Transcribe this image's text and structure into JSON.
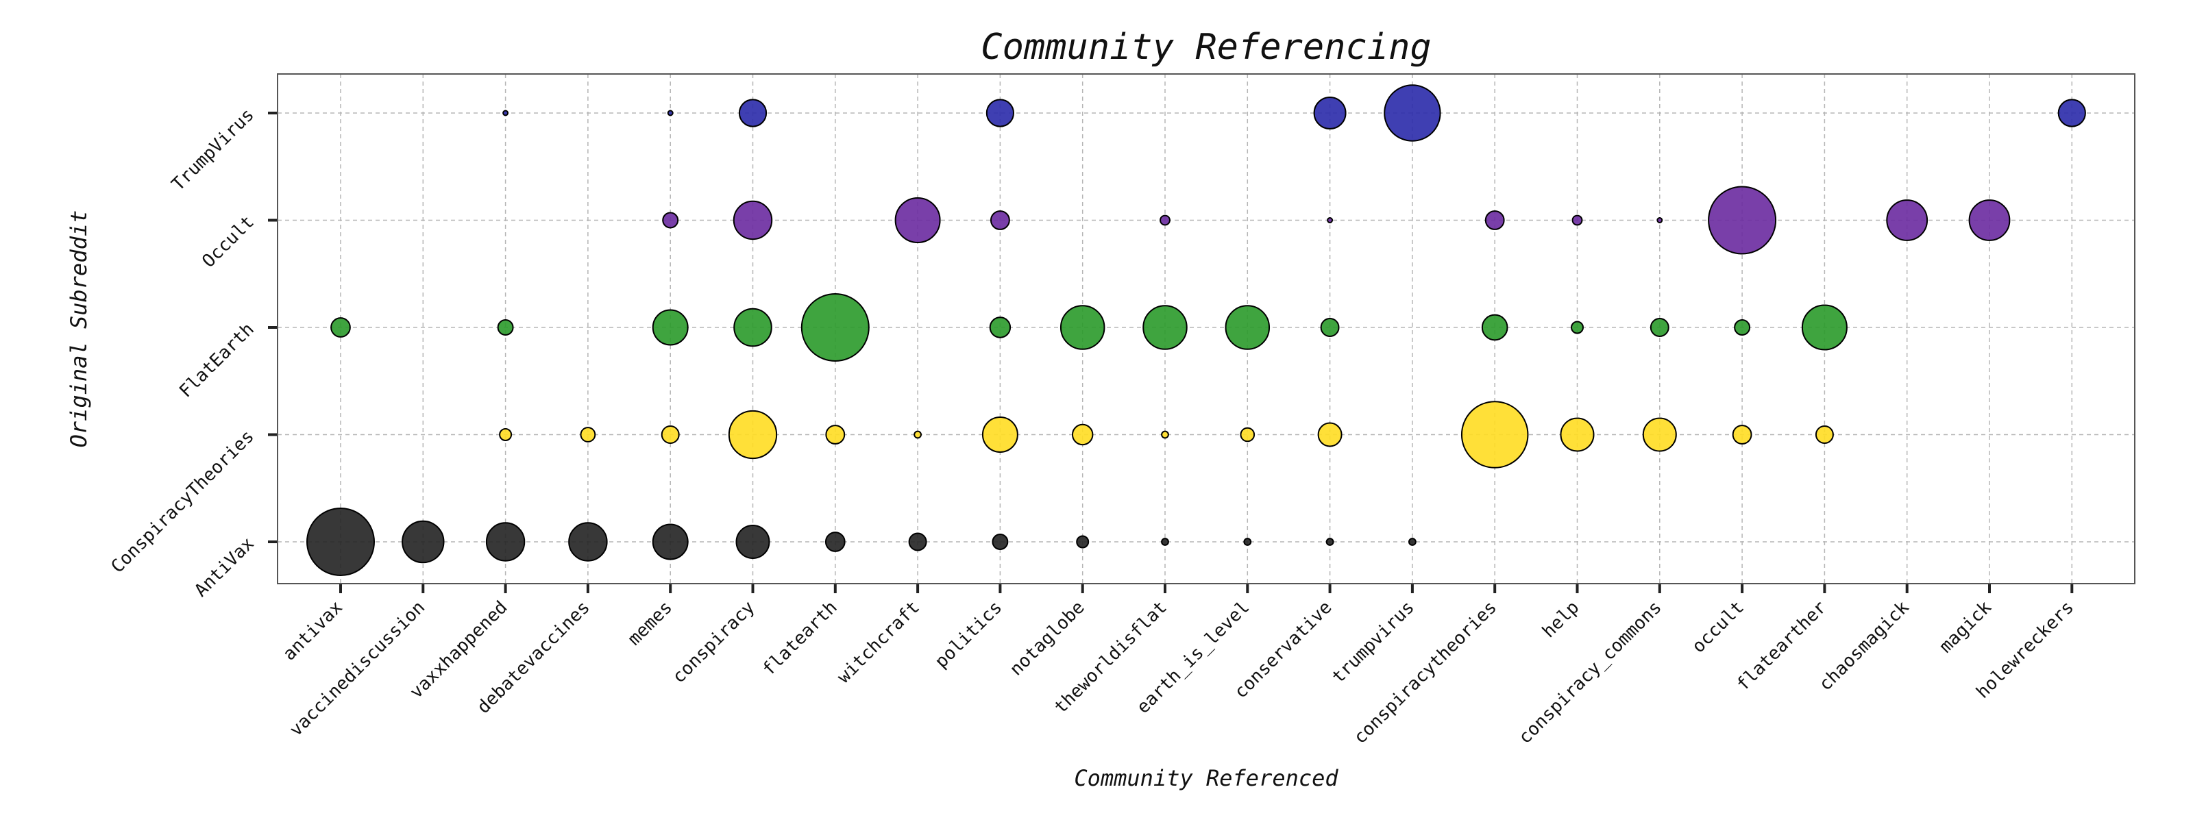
{
  "chart_data": {
    "type": "scatter",
    "title": "Community Referencing",
    "xlabel": "Community Referenced",
    "ylabel": "Original Subreddit",
    "grid": true,
    "categories_x": [
      "antivax",
      "vaccinediscussion",
      "vaxxhappened",
      "debatevaccines",
      "memes",
      "conspiracy",
      "flatearth",
      "witchcraft",
      "politics",
      "notaglobe",
      "theworldisflat",
      "earth_is_level",
      "conservative",
      "trumpvirus",
      "conspiracytheories",
      "help",
      "conspiracy_commons",
      "occult",
      "flatearther",
      "chaosmagick",
      "magick",
      "holewreckers"
    ],
    "categories_y": [
      "AntiVax",
      "ConspiracyTheories",
      "FlatEarth",
      "Occult",
      "TrumpVirus"
    ],
    "series": [
      {
        "name": "AntiVax",
        "color": "#222222",
        "points": [
          {
            "x": "antivax",
            "size": 100
          },
          {
            "x": "vaccinediscussion",
            "size": 38
          },
          {
            "x": "vaxxhappened",
            "size": 32
          },
          {
            "x": "debatevaccines",
            "size": 32
          },
          {
            "x": "memes",
            "size": 27
          },
          {
            "x": "conspiracy",
            "size": 24
          },
          {
            "x": "flatearth",
            "size": 8
          },
          {
            "x": "witchcraft",
            "size": 6.5
          },
          {
            "x": "politics",
            "size": 5
          },
          {
            "x": "notaglobe",
            "size": 3
          },
          {
            "x": "theworldisflat",
            "size": 1
          },
          {
            "x": "earth_is_level",
            "size": 1
          },
          {
            "x": "conservative",
            "size": 1
          },
          {
            "x": "trumpvirus",
            "size": 1
          }
        ]
      },
      {
        "name": "ConspiracyTheories",
        "color": "#ffdd22",
        "points": [
          {
            "x": "vaxxhappened",
            "size": 3
          },
          {
            "x": "debatevaccines",
            "size": 4.5
          },
          {
            "x": "memes",
            "size": 6.5
          },
          {
            "x": "conspiracy",
            "size": 50
          },
          {
            "x": "flatearth",
            "size": 7.5
          },
          {
            "x": "witchcraft",
            "size": 1
          },
          {
            "x": "politics",
            "size": 27
          },
          {
            "x": "notaglobe",
            "size": 9
          },
          {
            "x": "theworldisflat",
            "size": 1
          },
          {
            "x": "earth_is_level",
            "size": 4
          },
          {
            "x": "conservative",
            "size": 12
          },
          {
            "x": "conspiracytheories",
            "size": 97
          },
          {
            "x": "help",
            "size": 24
          },
          {
            "x": "conspiracy_commons",
            "size": 24
          },
          {
            "x": "occult",
            "size": 7.5
          },
          {
            "x": "flatearther",
            "size": 6.5
          }
        ]
      },
      {
        "name": "FlatEarth",
        "color": "#2a9a2a",
        "points": [
          {
            "x": "antivax",
            "size": 8
          },
          {
            "x": "vaxxhappened",
            "size": 5
          },
          {
            "x": "memes",
            "size": 27
          },
          {
            "x": "conspiracy",
            "size": 31
          },
          {
            "x": "flatearth",
            "size": 100
          },
          {
            "x": "politics",
            "size": 9
          },
          {
            "x": "notaglobe",
            "size": 42
          },
          {
            "x": "theworldisflat",
            "size": 42
          },
          {
            "x": "earth_is_level",
            "size": 42
          },
          {
            "x": "conservative",
            "size": 7
          },
          {
            "x": "conspiracytheories",
            "size": 14
          },
          {
            "x": "help",
            "size": 3
          },
          {
            "x": "conspiracy_commons",
            "size": 7
          },
          {
            "x": "occult",
            "size": 5
          },
          {
            "x": "flatearther",
            "size": 44
          }
        ]
      },
      {
        "name": "Occult",
        "color": "#6a2aa0",
        "points": [
          {
            "x": "memes",
            "size": 5
          },
          {
            "x": "conspiracy",
            "size": 32
          },
          {
            "x": "witchcraft",
            "size": 44
          },
          {
            "x": "politics",
            "size": 7.5
          },
          {
            "x": "theworldisflat",
            "size": 2
          },
          {
            "x": "conservative",
            "size": 0.5
          },
          {
            "x": "conspiracytheories",
            "size": 7.5
          },
          {
            "x": "help",
            "size": 2
          },
          {
            "x": "conspiracy_commons",
            "size": 0.5
          },
          {
            "x": "occult",
            "size": 100
          },
          {
            "x": "chaosmagick",
            "size": 36
          },
          {
            "x": "magick",
            "size": 36
          }
        ]
      },
      {
        "name": "TrumpVirus",
        "color": "#2a2aaa",
        "points": [
          {
            "x": "vaxxhappened",
            "size": 0.5
          },
          {
            "x": "memes",
            "size": 0.5
          },
          {
            "x": "conspiracy",
            "size": 16
          },
          {
            "x": "politics",
            "size": 16
          },
          {
            "x": "conservative",
            "size": 22
          },
          {
            "x": "trumpvirus",
            "size": 69
          },
          {
            "x": "holewreckers",
            "size": 16
          }
        ]
      }
    ]
  }
}
